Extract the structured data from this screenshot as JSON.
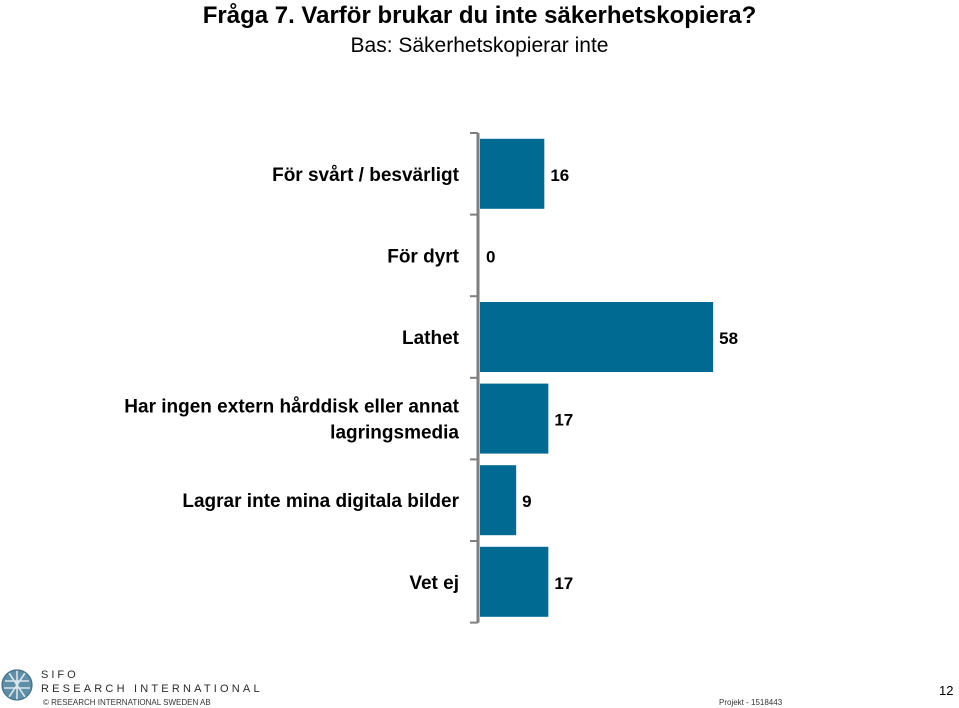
{
  "title": "Fråga 7. Varför brukar du inte säkerhetskopiera?",
  "subtitle": "Bas: Säkerhetskopierar inte",
  "chart_data": {
    "type": "bar",
    "orientation": "horizontal",
    "categories": [
      [
        "För svårt / besvärligt"
      ],
      [
        "För dyrt"
      ],
      [
        "Lathet"
      ],
      [
        "Har ingen extern hårddisk eller annat",
        "lagringsmedia"
      ],
      [
        "Lagrar inte mina digitala bilder"
      ],
      [
        "Vet ej"
      ]
    ],
    "values": [
      16,
      0,
      58,
      17,
      9,
      17
    ],
    "value_labels": [
      "16",
      "0",
      "58",
      "17",
      "9",
      "17"
    ],
    "xlim": [
      0,
      60
    ],
    "grid": false,
    "legend": "none",
    "bar_color": "#006a92",
    "axis_color": "#7f7f7f"
  },
  "footer": {
    "brand_line1": "SIFO",
    "brand_line2": "RESEARCH INTERNATIONAL",
    "copyright": "© RESEARCH INTERNATIONAL SWEDEN AB",
    "project": "Projekt - 1518443",
    "page": "12"
  },
  "logo_icon": "globe-icon"
}
